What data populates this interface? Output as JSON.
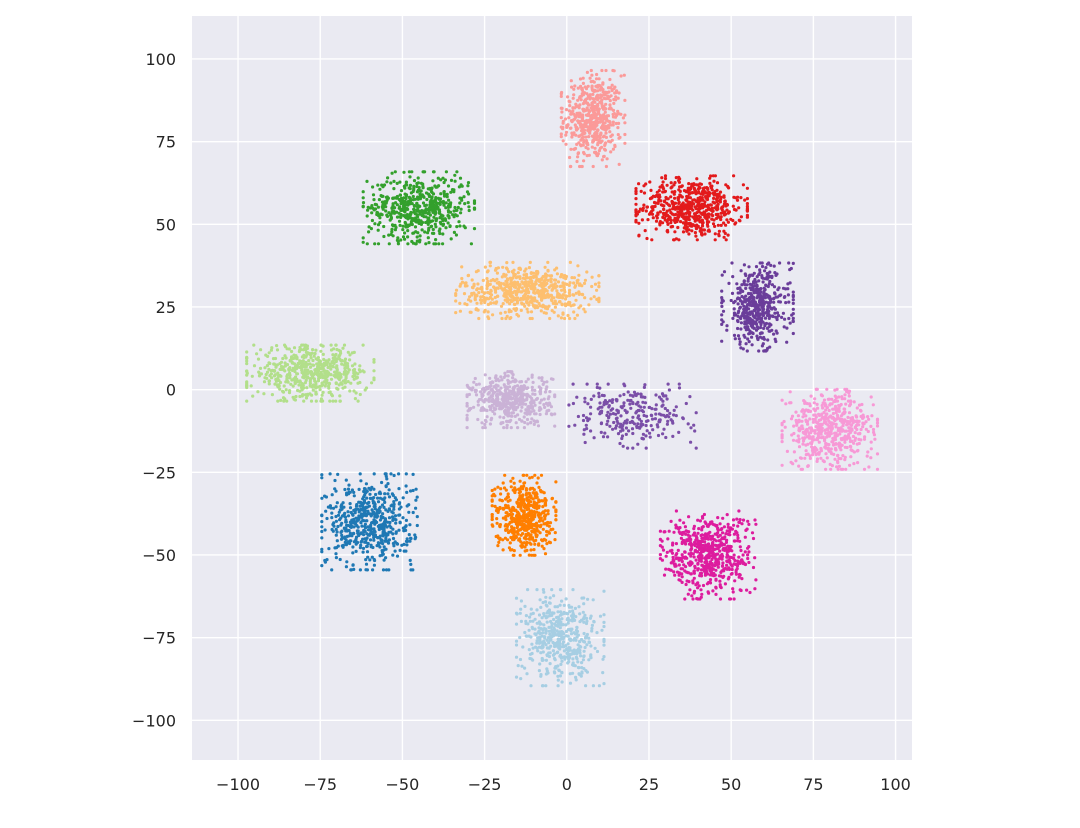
{
  "chart_data": {
    "type": "scatter",
    "title": "",
    "xlabel": "",
    "ylabel": "",
    "xlim": [
      -114,
      105
    ],
    "ylim": [
      -112,
      113
    ],
    "xticks": [
      -100,
      -75,
      -50,
      -25,
      0,
      25,
      50,
      75,
      100
    ],
    "yticks": [
      -100,
      -75,
      -50,
      -25,
      0,
      25,
      50,
      75,
      100
    ],
    "xtick_labels": [
      "−100",
      "−75",
      "−50",
      "−25",
      "0",
      "25",
      "50",
      "75",
      "100"
    ],
    "ytick_labels": [
      "−100",
      "−75",
      "−50",
      "−25",
      "0",
      "25",
      "50",
      "75",
      "100"
    ],
    "grid": true,
    "legend": "none",
    "background": "#eaeaf2",
    "clusters": [
      {
        "color": "#fb9a99",
        "center": [
          8,
          82
        ],
        "spread": [
          8,
          12
        ],
        "count": 520
      },
      {
        "color": "#e31a1c",
        "center": [
          38,
          55
        ],
        "spread": [
          14,
          8
        ],
        "count": 600
      },
      {
        "color": "#33a02c",
        "center": [
          -45,
          55
        ],
        "spread": [
          14,
          9
        ],
        "count": 560
      },
      {
        "color": "#fdbf6f",
        "center": [
          -12,
          30
        ],
        "spread": [
          18,
          7
        ],
        "count": 620
      },
      {
        "color": "#6a3d9a",
        "center": [
          58,
          25
        ],
        "spread": [
          9,
          11
        ],
        "count": 480
      },
      {
        "color": "#b2df8a",
        "center": [
          -78,
          5
        ],
        "spread": [
          16,
          7
        ],
        "count": 560
      },
      {
        "color": "#cab2d6",
        "center": [
          -17,
          -3
        ],
        "spread": [
          11,
          7
        ],
        "count": 470
      },
      {
        "color": "#f799d6",
        "center": [
          80,
          -12
        ],
        "spread": [
          12,
          10
        ],
        "count": 540
      },
      {
        "color": "#1f78b4",
        "center": [
          -60,
          -40
        ],
        "spread": [
          12,
          12
        ],
        "count": 560
      },
      {
        "color": "#ff7f00",
        "center": [
          -13,
          -38
        ],
        "spread": [
          8,
          10
        ],
        "count": 500
      },
      {
        "color": "#dd1c9e",
        "center": [
          43,
          -50
        ],
        "spread": [
          12,
          11
        ],
        "count": 580
      },
      {
        "color": "#a6cee3",
        "center": [
          -2,
          -75
        ],
        "spread": [
          11,
          12
        ],
        "count": 480
      },
      {
        "color": "#7b4fa8",
        "center": [
          20,
          -8
        ],
        "spread": [
          16,
          8
        ],
        "count": 260
      }
    ]
  }
}
